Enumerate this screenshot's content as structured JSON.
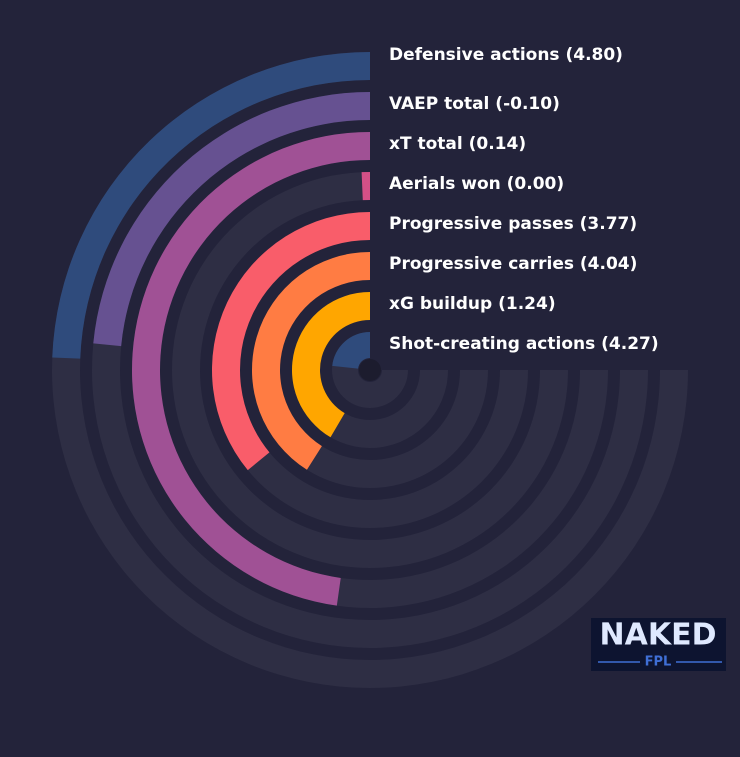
{
  "chart_data": {
    "type": "radial_bar",
    "categories": [
      "Defensive actions (4.80)",
      "VAEP total (-0.10)",
      "xT total (0.14)",
      "Aerials won (0.00)",
      "Progressive passes (3.77)",
      "Progressive carries (4.04)",
      "xG buildup (1.24)",
      "Shot-creating actions (4.27)"
    ],
    "values": [
      32.5,
      31.3,
      63.7,
      0.9,
      47.9,
      54.7,
      55.4,
      31
    ],
    "colors": [
      "#2f4b7c",
      "#665191",
      "#a05195",
      "#d45087",
      "#f95d6a",
      "#ff7c43",
      "#ffa600",
      "#2f4b7c"
    ],
    "ylim": [
      0,
      100
    ]
  },
  "logo": {
    "top": "NAKED",
    "bottom": "FPL"
  }
}
